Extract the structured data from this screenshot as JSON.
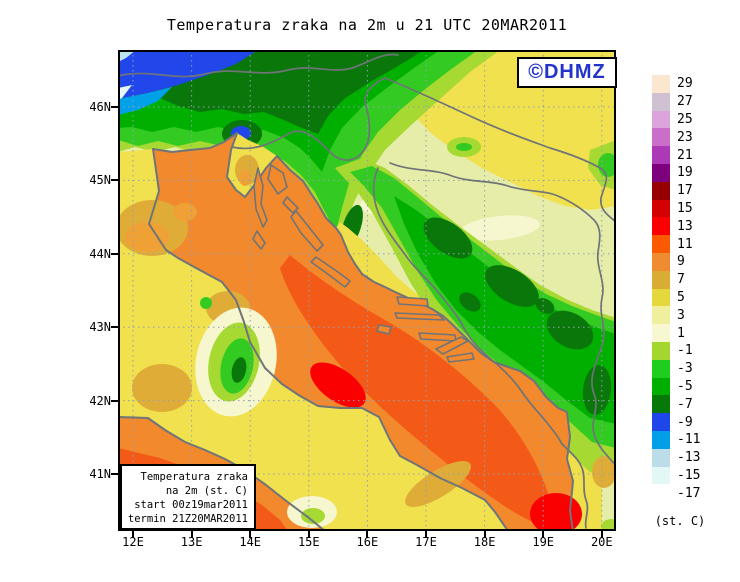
{
  "title": "Temperatura zraka na 2m u 21 UTC 20MAR2011",
  "logo": {
    "text": "©DHMZ",
    "color": "#2233CC"
  },
  "info_box": {
    "lines": [
      "Temperatura zraka",
      "na 2m (st. C)",
      "start 00z19mar2011",
      "termin 21Z20MAR2011"
    ]
  },
  "map_axes": {
    "lat_ticks": [
      "46N",
      "45N",
      "44N",
      "43N",
      "42N",
      "41N"
    ],
    "lon_ticks": [
      "12E",
      "13E",
      "14E",
      "15E",
      "16E",
      "17E",
      "18E",
      "19E",
      "20E"
    ]
  },
  "colorbar": {
    "unit_label": "(st. C)",
    "entries": [
      {
        "value": "29",
        "color": "#FBE7CF"
      },
      {
        "value": "27",
        "color": "#CFC1D2"
      },
      {
        "value": "25",
        "color": "#DCA4DC"
      },
      {
        "value": "23",
        "color": "#C96FC9"
      },
      {
        "value": "21",
        "color": "#AC39B6"
      },
      {
        "value": "19",
        "color": "#7D007D"
      },
      {
        "value": "17",
        "color": "#960000"
      },
      {
        "value": "15",
        "color": "#D40000"
      },
      {
        "value": "13",
        "color": "#FB0000"
      },
      {
        "value": "11",
        "color": "#FB5A00"
      },
      {
        "value": "9",
        "color": "#EF8B30"
      },
      {
        "value": "7",
        "color": "#D9AC33"
      },
      {
        "value": "5",
        "color": "#E5D83C"
      },
      {
        "value": "3",
        "color": "#EFEF9E"
      },
      {
        "value": "1",
        "color": "#F7F7D2"
      },
      {
        "value": "-1",
        "color": "#A3D62F"
      },
      {
        "value": "-3",
        "color": "#1FCD1F"
      },
      {
        "value": "-5",
        "color": "#00AE00"
      },
      {
        "value": "-7",
        "color": "#087808"
      },
      {
        "value": "-9",
        "color": "#1E46E8"
      },
      {
        "value": "-11",
        "color": "#009FE8"
      },
      {
        "value": "-13",
        "color": "#BCDCE8"
      },
      {
        "value": "-15",
        "color": "#E4F7F7"
      },
      {
        "value": "-17",
        "color": null
      }
    ]
  },
  "map_colors": {
    "frame": "#000000",
    "coastline_and_borders": "#6F7478",
    "gridlines": "#90A0B4",
    "sea_orange": "#F2892D",
    "sea_deep_orange": "#F45A17",
    "sea_red_core": "#FB0000",
    "lowland_yellow": "#F1E14F",
    "pale_base": "#E6EDA8",
    "mountain_green": "#33CB21",
    "mountain_dark_green": "#097709",
    "alps_blue": "#2147EA"
  }
}
